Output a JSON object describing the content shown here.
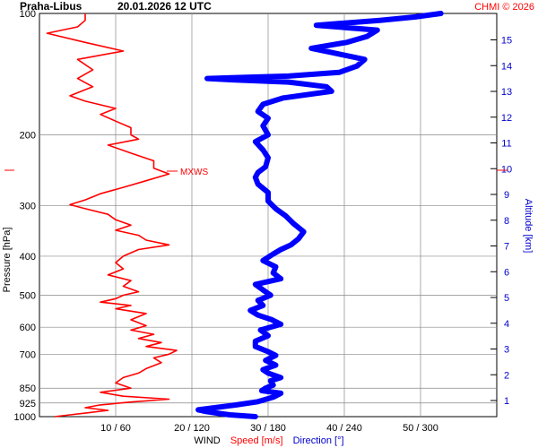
{
  "header": {
    "station": "Praha-Libus",
    "datetime": "20.01.2026 12 UTC",
    "copyright": "CHMI © 2026"
  },
  "chart_data": {
    "type": "line",
    "title": "Praha-Libus   20.01.2026 12 UTC",
    "ylabel_left": "Pressure [hPa]",
    "ylabel_right": "Altitude [km]",
    "xlabel_parts": [
      "WIND",
      "Speed [m/s]",
      "Direction [°]"
    ],
    "pressure_ticks": [
      100,
      200,
      300,
      400,
      500,
      600,
      700,
      850,
      925,
      1000
    ],
    "pressure_tick_labels": [
      "100",
      "200",
      "300",
      "400",
      "500",
      "600",
      "700",
      "850",
      "925",
      "1000"
    ],
    "altitude_ticks": [
      1,
      2,
      3,
      4,
      5,
      6,
      7,
      8,
      9,
      10,
      11,
      12,
      13,
      14,
      15
    ],
    "altitude_tick_labels": [
      "1",
      "2",
      "3",
      "4",
      "5",
      "6",
      "7",
      "8",
      "9",
      "10",
      "11",
      "12",
      "13",
      "14",
      "15"
    ],
    "x_tick_labels": [
      "10 / 60",
      "20 / 120",
      "30 / 180",
      "40 / 240",
      "50 / 300"
    ],
    "speed_xlim": [
      0,
      60
    ],
    "direction_xlim": [
      0,
      360
    ],
    "grid": true,
    "annotation": "MXWS",
    "max_wind_pressure": 250,
    "series": [
      {
        "name": "Speed [m/s]",
        "color": "#ff0000",
        "points": [
          [
            1000,
            2
          ],
          [
            990,
            4
          ],
          [
            980,
            6
          ],
          [
            965,
            9
          ],
          [
            950,
            6
          ],
          [
            935,
            8
          ],
          [
            920,
            12
          ],
          [
            905,
            17
          ],
          [
            890,
            11
          ],
          [
            870,
            8
          ],
          [
            850,
            12
          ],
          [
            825,
            10
          ],
          [
            800,
            11
          ],
          [
            780,
            13
          ],
          [
            760,
            14
          ],
          [
            735,
            16
          ],
          [
            715,
            15
          ],
          [
            700,
            17
          ],
          [
            685,
            18
          ],
          [
            670,
            14
          ],
          [
            655,
            16
          ],
          [
            640,
            13
          ],
          [
            625,
            15
          ],
          [
            610,
            12
          ],
          [
            595,
            14
          ],
          [
            575,
            12
          ],
          [
            555,
            14
          ],
          [
            540,
            10
          ],
          [
            530,
            12
          ],
          [
            520,
            8
          ],
          [
            510,
            10
          ],
          [
            500,
            11
          ],
          [
            490,
            13
          ],
          [
            475,
            11
          ],
          [
            460,
            12
          ],
          [
            445,
            9
          ],
          [
            430,
            11
          ],
          [
            415,
            10
          ],
          [
            400,
            11
          ],
          [
            385,
            13
          ],
          [
            375,
            17
          ],
          [
            365,
            14
          ],
          [
            355,
            13
          ],
          [
            345,
            10
          ],
          [
            335,
            12
          ],
          [
            325,
            10
          ],
          [
            315,
            9
          ],
          [
            305,
            6
          ],
          [
            298,
            4
          ],
          [
            290,
            6
          ],
          [
            280,
            8
          ],
          [
            270,
            11
          ],
          [
            260,
            14
          ],
          [
            250,
            17
          ],
          [
            242,
            15
          ],
          [
            232,
            15
          ],
          [
            222,
            12
          ],
          [
            212,
            9
          ],
          [
            205,
            13
          ],
          [
            200,
            12
          ],
          [
            192,
            12
          ],
          [
            185,
            10
          ],
          [
            178,
            8
          ],
          [
            172,
            10
          ],
          [
            165,
            6
          ],
          [
            160,
            4
          ],
          [
            152,
            7
          ],
          [
            145,
            5
          ],
          [
            138,
            7
          ],
          [
            130,
            5
          ],
          [
            124,
            11
          ],
          [
            118,
            6
          ],
          [
            112,
            1
          ],
          [
            108,
            5
          ],
          [
            104,
            6
          ],
          [
            100,
            6
          ]
        ]
      },
      {
        "name": "Direction [°]",
        "color": "#0000ff",
        "points": [
          [
            1000,
            170
          ],
          [
            990,
            150
          ],
          [
            980,
            140
          ],
          [
            970,
            130
          ],
          [
            962,
            125
          ],
          [
            950,
            138
          ],
          [
            935,
            155
          ],
          [
            918,
            172
          ],
          [
            895,
            184
          ],
          [
            875,
            190
          ],
          [
            862,
            175
          ],
          [
            850,
            178
          ],
          [
            835,
            184
          ],
          [
            815,
            182
          ],
          [
            800,
            190
          ],
          [
            780,
            180
          ],
          [
            765,
            176
          ],
          [
            745,
            186
          ],
          [
            725,
            178
          ],
          [
            705,
            186
          ],
          [
            690,
            180
          ],
          [
            670,
            170
          ],
          [
            650,
            170
          ],
          [
            630,
            180
          ],
          [
            610,
            174
          ],
          [
            590,
            190
          ],
          [
            575,
            183
          ],
          [
            560,
            172
          ],
          [
            545,
            166
          ],
          [
            530,
            176
          ],
          [
            515,
            172
          ],
          [
            500,
            182
          ],
          [
            485,
            176
          ],
          [
            470,
            170
          ],
          [
            455,
            190
          ],
          [
            440,
            184
          ],
          [
            425,
            186
          ],
          [
            410,
            176
          ],
          [
            395,
            184
          ],
          [
            385,
            190
          ],
          [
            375,
            198
          ],
          [
            362,
            204
          ],
          [
            348,
            208
          ],
          [
            332,
            200
          ],
          [
            318,
            194
          ],
          [
            305,
            186
          ],
          [
            292,
            180
          ],
          [
            278,
            180
          ],
          [
            265,
            172
          ],
          [
            255,
            170
          ],
          [
            248,
            172
          ],
          [
            240,
            178
          ],
          [
            228,
            180
          ],
          [
            218,
            176
          ],
          [
            208,
            170
          ],
          [
            200,
            180
          ],
          [
            190,
            176
          ],
          [
            182,
            180
          ],
          [
            175,
            172
          ],
          [
            168,
            176
          ],
          [
            162,
            192
          ],
          [
            156,
            230
          ],
          [
            152,
            226
          ],
          [
            148,
            196
          ],
          [
            146,
            150
          ],
          [
            145,
            132
          ],
          [
            143,
            196
          ],
          [
            140,
            236
          ],
          [
            135,
            250
          ],
          [
            130,
            256
          ],
          [
            125,
            230
          ],
          [
            122,
            214
          ],
          [
            118,
            242
          ],
          [
            114,
            258
          ],
          [
            110,
            266
          ],
          [
            107,
            218
          ],
          [
            104,
            268
          ],
          [
            102,
            296
          ],
          [
            100,
            316
          ]
        ]
      }
    ]
  }
}
